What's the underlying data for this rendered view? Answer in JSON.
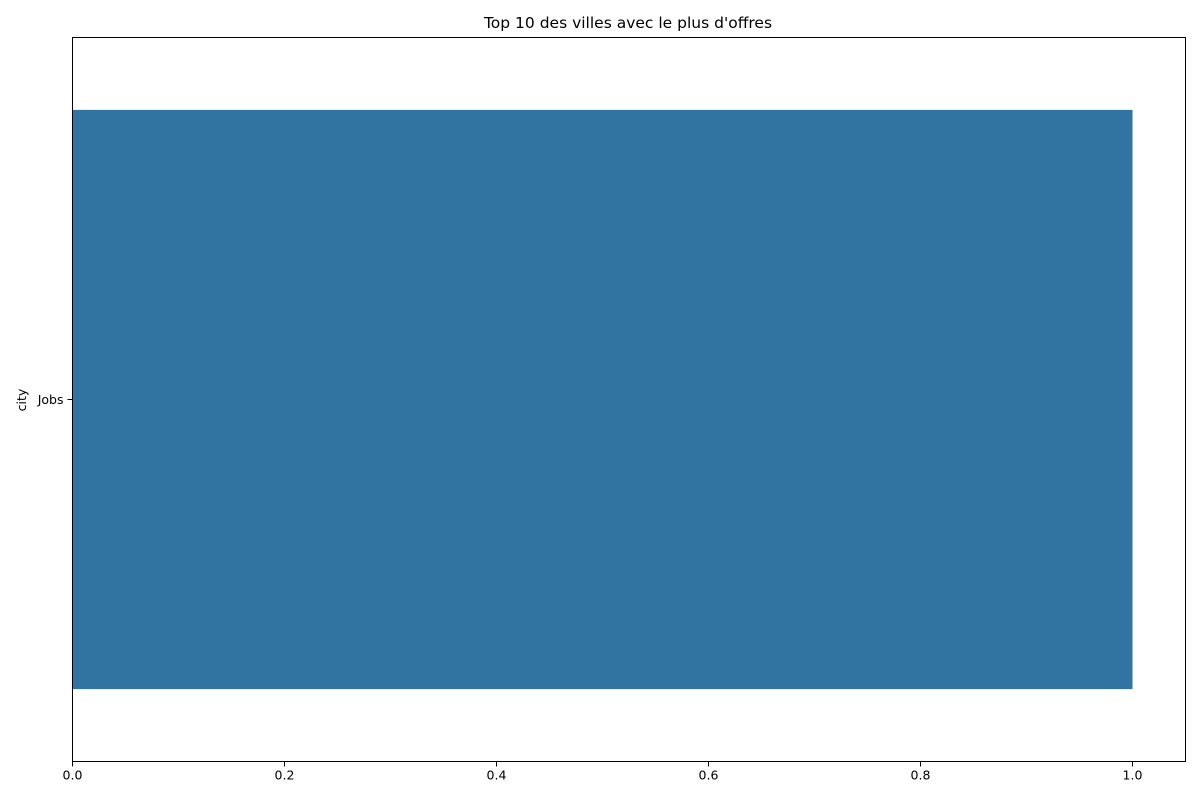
{
  "chart_data": {
    "type": "bar",
    "orientation": "horizontal",
    "title": "Top 10 des villes avec le plus d'offres",
    "xlabel": "",
    "ylabel": "city",
    "categories": [
      "Jobs"
    ],
    "values": [
      1.0
    ],
    "xlim": [
      0,
      1.05
    ],
    "xticks": [
      0.0,
      0.2,
      0.4,
      0.6,
      0.8,
      1.0
    ],
    "xtick_labels": [
      "0.0",
      "0.2",
      "0.4",
      "0.6",
      "0.8",
      "1.0"
    ],
    "grid": false,
    "legend": "none",
    "bar_color": "#3274a1"
  }
}
